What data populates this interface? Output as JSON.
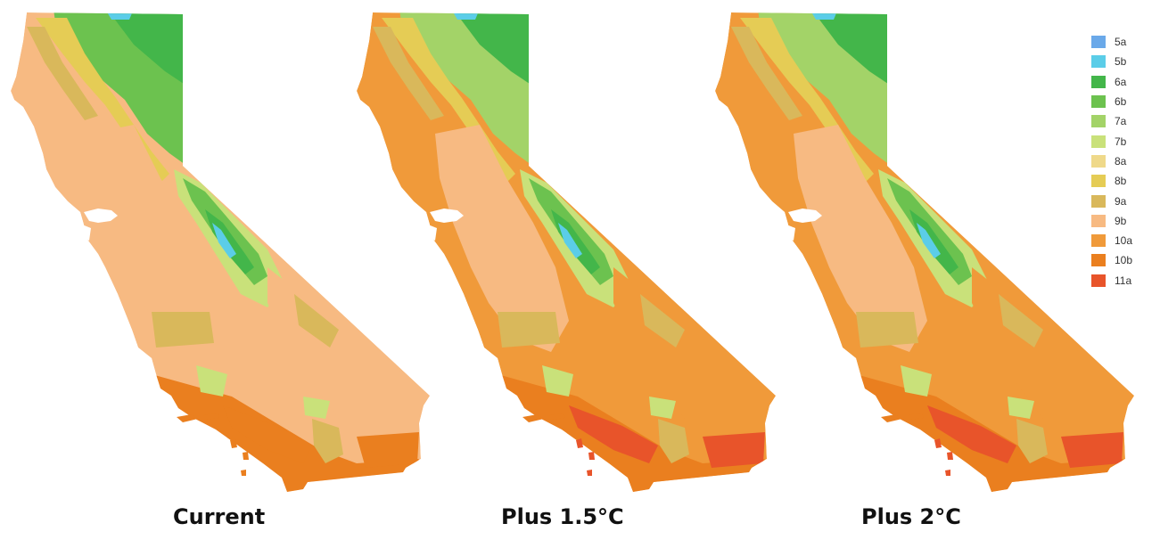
{
  "zones": [
    {
      "id": "5a",
      "label": "5a",
      "color": "#6AA9E9"
    },
    {
      "id": "5b",
      "label": "5b",
      "color": "#5BCDE8"
    },
    {
      "id": "6a",
      "label": "6a",
      "color": "#43B64A"
    },
    {
      "id": "6b",
      "label": "6b",
      "color": "#6CC24F"
    },
    {
      "id": "7a",
      "label": "7a",
      "color": "#A3D368"
    },
    {
      "id": "7b",
      "label": "7b",
      "color": "#C9E17A"
    },
    {
      "id": "8a",
      "label": "8a",
      "color": "#EFD98A"
    },
    {
      "id": "8b",
      "label": "8b",
      "color": "#E5CC55"
    },
    {
      "id": "9a",
      "label": "9a",
      "color": "#D9B85B"
    },
    {
      "id": "9b",
      "label": "9b",
      "color": "#F7BA82"
    },
    {
      "id": "10a",
      "label": "10a",
      "color": "#F09A3A"
    },
    {
      "id": "10b",
      "label": "10b",
      "color": "#EA7F1F"
    },
    {
      "id": "11a",
      "label": "11a",
      "color": "#E8542A"
    }
  ],
  "maps": [
    {
      "id": "current",
      "caption": "Current",
      "base_zone": "9b",
      "central_zone": "9b",
      "south_zone": "10b",
      "north_zone": "6b",
      "coast_zone": "9b",
      "hot_zone": "10b"
    },
    {
      "id": "plus15",
      "caption": "Plus 1.5°C",
      "base_zone": "10a",
      "central_zone": "9b",
      "south_zone": "10b",
      "north_zone": "7a",
      "coast_zone": "10a",
      "hot_zone": "11a"
    },
    {
      "id": "plus2",
      "caption": "Plus 2°C",
      "base_zone": "10a",
      "central_zone": "9b",
      "south_zone": "10b",
      "north_zone": "7a",
      "coast_zone": "10a",
      "hot_zone": "11a"
    }
  ]
}
